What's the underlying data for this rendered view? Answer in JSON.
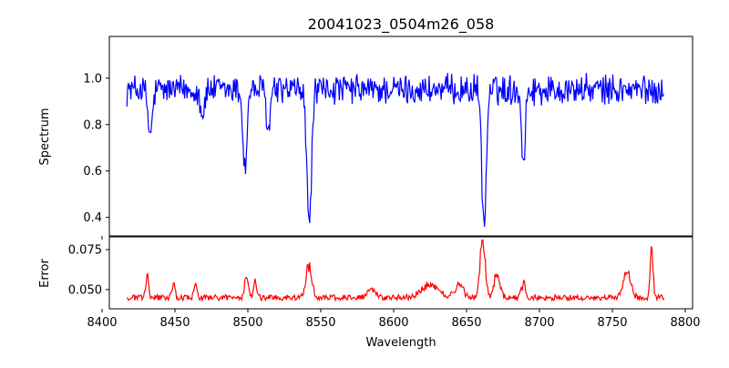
{
  "chart_data": [
    {
      "type": "line",
      "panel": "top",
      "title": "20041023_0504m26_058",
      "xlabel": "",
      "ylabel": "Spectrum",
      "xlim": [
        8405,
        8805
      ],
      "ylim": [
        0.32,
        1.18
      ],
      "xticks": [
        8400,
        8450,
        8500,
        8550,
        8600,
        8650,
        8700,
        8750,
        8800
      ],
      "yticks": [
        0.4,
        0.6,
        0.8,
        1.0
      ],
      "ytick_labels": [
        "0.4",
        "0.6",
        "0.8",
        "1.0"
      ],
      "grid": false,
      "series": [
        {
          "color": "#0000ff",
          "baseline": 0.95,
          "noise": 0.055,
          "x_start": 8417,
          "x_end": 8786,
          "absorption_lines": [
            {
              "center": 8433,
              "depth": 0.2,
              "width": 1.5
            },
            {
              "center": 8469,
              "depth": 0.1,
              "width": 1.5
            },
            {
              "center": 8498,
              "depth": 0.34,
              "width": 1.4
            },
            {
              "center": 8514,
              "depth": 0.18,
              "width": 1.3
            },
            {
              "center": 8542,
              "depth": 0.58,
              "width": 1.6
            },
            {
              "center": 8662,
              "depth": 0.6,
              "width": 1.5
            },
            {
              "center": 8689,
              "depth": 0.32,
              "width": 1.2
            }
          ]
        }
      ]
    },
    {
      "type": "line",
      "panel": "bottom",
      "xlabel": "Wavelength",
      "ylabel": "Error",
      "xlim": [
        8405,
        8805
      ],
      "ylim": [
        0.038,
        0.083
      ],
      "xticks": [
        8400,
        8450,
        8500,
        8550,
        8600,
        8650,
        8700,
        8750,
        8800
      ],
      "xtick_labels": [
        "8400",
        "8450",
        "8500",
        "8550",
        "8600",
        "8650",
        "8700",
        "8750",
        "8800"
      ],
      "yticks": [
        0.05,
        0.075
      ],
      "ytick_labels": [
        "0.050",
        "0.075"
      ],
      "grid": false,
      "series": [
        {
          "color": "#ff0000",
          "baseline": 0.045,
          "noise": 0.0018,
          "x_start": 8417,
          "x_end": 8786,
          "peaks": [
            {
              "center": 8431,
              "height": 0.016,
              "width": 1.0
            },
            {
              "center": 8449,
              "height": 0.008,
              "width": 1.0
            },
            {
              "center": 8464,
              "height": 0.012,
              "width": 1.0
            },
            {
              "center": 8499,
              "height": 0.014,
              "width": 1.2
            },
            {
              "center": 8505,
              "height": 0.01,
              "width": 1.0
            },
            {
              "center": 8542,
              "height": 0.019,
              "width": 2.0
            },
            {
              "center": 8585,
              "height": 0.005,
              "width": 3.0
            },
            {
              "center": 8625,
              "height": 0.008,
              "width": 6.0
            },
            {
              "center": 8645,
              "height": 0.008,
              "width": 3.0
            },
            {
              "center": 8661,
              "height": 0.035,
              "width": 1.8
            },
            {
              "center": 8671,
              "height": 0.014,
              "width": 2.0
            },
            {
              "center": 8689,
              "height": 0.01,
              "width": 1.2
            },
            {
              "center": 8760,
              "height": 0.016,
              "width": 2.5
            },
            {
              "center": 8777,
              "height": 0.028,
              "width": 1.0
            }
          ]
        }
      ]
    }
  ]
}
